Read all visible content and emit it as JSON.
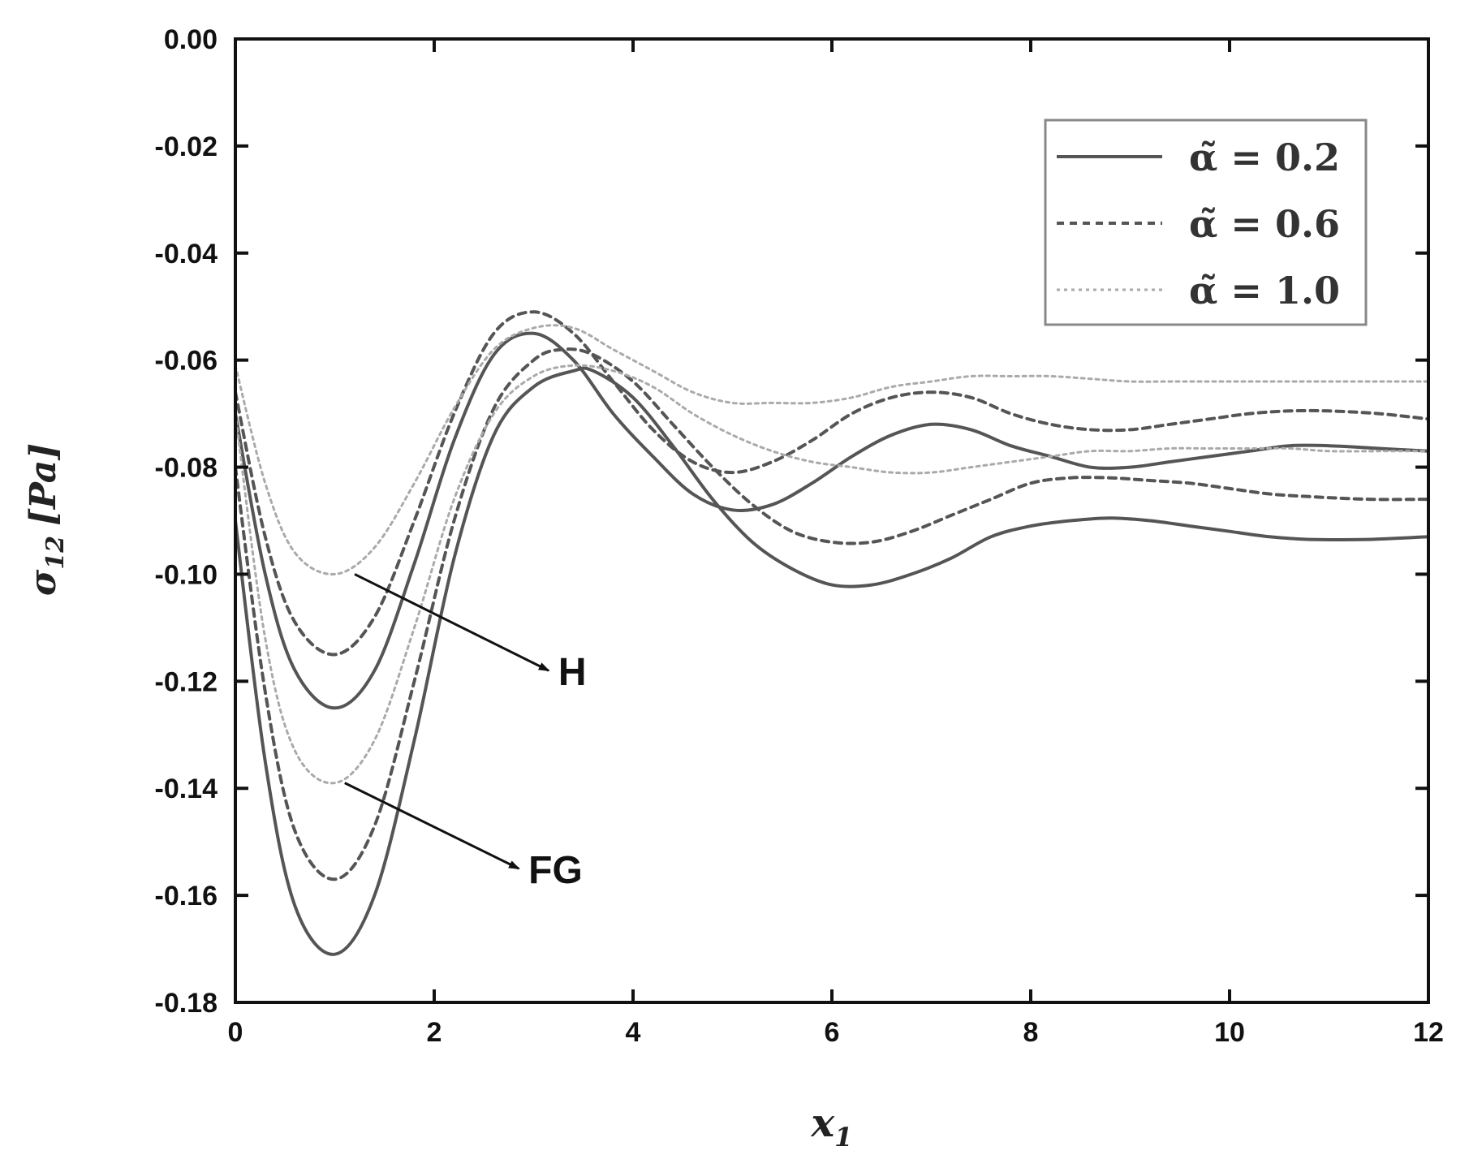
{
  "chart_data": {
    "type": "line",
    "title": "",
    "xlabel": {
      "main": "x",
      "sub": "1"
    },
    "ylabel": {
      "main": "σ",
      "sub": "12",
      "unit": "[Pa]"
    },
    "xlim": [
      0,
      12
    ],
    "ylim": [
      -0.18,
      0.0
    ],
    "xticks": [
      0,
      2,
      4,
      6,
      8,
      10,
      12
    ],
    "xtick_labels": [
      "0",
      "2",
      "4",
      "6",
      "8",
      "10",
      "12"
    ],
    "yticks": [
      0.0,
      -0.02,
      -0.04,
      -0.06,
      -0.08,
      -0.1,
      -0.12,
      -0.14,
      -0.16,
      -0.18
    ],
    "ytick_labels": [
      "0.00",
      "-0.02",
      "-0.04",
      "-0.06",
      "-0.08",
      "-0.10",
      "-0.12",
      "-0.14",
      "-0.16",
      "-0.18"
    ],
    "grid": false,
    "legend": {
      "placement": "top-right",
      "entries": [
        {
          "label": "α̃ = 0.2",
          "style": "solid",
          "color": "#555555"
        },
        {
          "label": "α̃ = 0.6",
          "style": "dashed",
          "color": "#555555"
        },
        {
          "label": "α̃ = 1.0",
          "style": "dotted",
          "color": "#aaaaaa"
        }
      ]
    },
    "annotations": [
      {
        "text": "H",
        "from": [
          1.2,
          -0.1
        ],
        "to": [
          3.15,
          -0.118
        ]
      },
      {
        "text": "FG",
        "from": [
          1.1,
          -0.139
        ],
        "to": [
          2.85,
          -0.155
        ]
      }
    ],
    "series": [
      {
        "style": "solid",
        "color": "#555555",
        "group": "H",
        "points": [
          [
            0,
            -0.07
          ],
          [
            0.3,
            -0.1
          ],
          [
            0.6,
            -0.118
          ],
          [
            1.0,
            -0.125
          ],
          [
            1.4,
            -0.118
          ],
          [
            1.8,
            -0.098
          ],
          [
            2.2,
            -0.075
          ],
          [
            2.6,
            -0.059
          ],
          [
            3.0,
            -0.055
          ],
          [
            3.4,
            -0.06
          ],
          [
            3.8,
            -0.07
          ],
          [
            4.2,
            -0.078
          ],
          [
            4.6,
            -0.085
          ],
          [
            5.0,
            -0.088
          ],
          [
            5.4,
            -0.087
          ],
          [
            5.8,
            -0.083
          ],
          [
            6.2,
            -0.078
          ],
          [
            6.6,
            -0.074
          ],
          [
            7.0,
            -0.072
          ],
          [
            7.4,
            -0.073
          ],
          [
            7.8,
            -0.076
          ],
          [
            8.2,
            -0.078
          ],
          [
            8.6,
            -0.08
          ],
          [
            9.0,
            -0.08
          ],
          [
            9.4,
            -0.079
          ],
          [
            9.8,
            -0.078
          ],
          [
            10.2,
            -0.077
          ],
          [
            10.6,
            -0.076
          ],
          [
            11.0,
            -0.076
          ],
          [
            11.5,
            -0.0765
          ],
          [
            12.0,
            -0.077
          ]
        ]
      },
      {
        "style": "dashed",
        "color": "#555555",
        "group": "H",
        "points": [
          [
            0,
            -0.066
          ],
          [
            0.3,
            -0.093
          ],
          [
            0.6,
            -0.109
          ],
          [
            1.0,
            -0.115
          ],
          [
            1.4,
            -0.108
          ],
          [
            1.8,
            -0.09
          ],
          [
            2.2,
            -0.07
          ],
          [
            2.6,
            -0.055
          ],
          [
            3.0,
            -0.051
          ],
          [
            3.4,
            -0.055
          ],
          [
            3.8,
            -0.064
          ],
          [
            4.2,
            -0.073
          ],
          [
            4.6,
            -0.079
          ],
          [
            5.0,
            -0.081
          ],
          [
            5.4,
            -0.079
          ],
          [
            5.8,
            -0.075
          ],
          [
            6.2,
            -0.07
          ],
          [
            6.6,
            -0.067
          ],
          [
            7.0,
            -0.066
          ],
          [
            7.4,
            -0.067
          ],
          [
            7.8,
            -0.07
          ],
          [
            8.2,
            -0.072
          ],
          [
            8.6,
            -0.073
          ],
          [
            9.0,
            -0.073
          ],
          [
            9.4,
            -0.072
          ],
          [
            9.8,
            -0.071
          ],
          [
            10.2,
            -0.07
          ],
          [
            10.6,
            -0.0695
          ],
          [
            11.0,
            -0.0695
          ],
          [
            11.5,
            -0.07
          ],
          [
            12.0,
            -0.071
          ]
        ]
      },
      {
        "style": "dotted",
        "color": "#aaaaaa",
        "group": "H",
        "points": [
          [
            0,
            -0.061
          ],
          [
            0.3,
            -0.083
          ],
          [
            0.6,
            -0.096
          ],
          [
            1.0,
            -0.1
          ],
          [
            1.4,
            -0.095
          ],
          [
            1.8,
            -0.083
          ],
          [
            2.2,
            -0.069
          ],
          [
            2.6,
            -0.058
          ],
          [
            3.0,
            -0.054
          ],
          [
            3.4,
            -0.054
          ],
          [
            3.8,
            -0.058
          ],
          [
            4.2,
            -0.062
          ],
          [
            4.6,
            -0.066
          ],
          [
            5.0,
            -0.068
          ],
          [
            5.4,
            -0.068
          ],
          [
            5.8,
            -0.068
          ],
          [
            6.2,
            -0.067
          ],
          [
            6.6,
            -0.065
          ],
          [
            7.0,
            -0.064
          ],
          [
            7.4,
            -0.063
          ],
          [
            7.8,
            -0.063
          ],
          [
            8.2,
            -0.063
          ],
          [
            8.6,
            -0.0635
          ],
          [
            9.0,
            -0.064
          ],
          [
            9.4,
            -0.064
          ],
          [
            9.8,
            -0.064
          ],
          [
            10.2,
            -0.064
          ],
          [
            10.6,
            -0.064
          ],
          [
            11.0,
            -0.064
          ],
          [
            11.5,
            -0.064
          ],
          [
            12.0,
            -0.064
          ]
        ]
      },
      {
        "style": "solid",
        "color": "#555555",
        "group": "FG",
        "points": [
          [
            0,
            -0.09
          ],
          [
            0.3,
            -0.135
          ],
          [
            0.6,
            -0.162
          ],
          [
            1.0,
            -0.171
          ],
          [
            1.4,
            -0.16
          ],
          [
            1.8,
            -0.131
          ],
          [
            2.2,
            -0.097
          ],
          [
            2.6,
            -0.074
          ],
          [
            3.0,
            -0.065
          ],
          [
            3.4,
            -0.062
          ],
          [
            3.6,
            -0.062
          ],
          [
            4.0,
            -0.067
          ],
          [
            4.4,
            -0.076
          ],
          [
            4.8,
            -0.086
          ],
          [
            5.2,
            -0.094
          ],
          [
            5.6,
            -0.099
          ],
          [
            6.0,
            -0.102
          ],
          [
            6.4,
            -0.102
          ],
          [
            6.8,
            -0.1
          ],
          [
            7.2,
            -0.097
          ],
          [
            7.6,
            -0.093
          ],
          [
            8.0,
            -0.091
          ],
          [
            8.4,
            -0.09
          ],
          [
            8.8,
            -0.0895
          ],
          [
            9.2,
            -0.09
          ],
          [
            9.6,
            -0.091
          ],
          [
            10.0,
            -0.092
          ],
          [
            10.4,
            -0.093
          ],
          [
            10.8,
            -0.0935
          ],
          [
            11.4,
            -0.0935
          ],
          [
            12.0,
            -0.093
          ]
        ]
      },
      {
        "style": "dashed",
        "color": "#555555",
        "group": "FG",
        "points": [
          [
            0,
            -0.08
          ],
          [
            0.3,
            -0.122
          ],
          [
            0.6,
            -0.148
          ],
          [
            1.0,
            -0.157
          ],
          [
            1.4,
            -0.147
          ],
          [
            1.8,
            -0.12
          ],
          [
            2.2,
            -0.09
          ],
          [
            2.6,
            -0.069
          ],
          [
            3.0,
            -0.06
          ],
          [
            3.3,
            -0.058
          ],
          [
            3.6,
            -0.059
          ],
          [
            4.0,
            -0.064
          ],
          [
            4.4,
            -0.072
          ],
          [
            4.8,
            -0.08
          ],
          [
            5.2,
            -0.087
          ],
          [
            5.6,
            -0.092
          ],
          [
            6.0,
            -0.094
          ],
          [
            6.4,
            -0.094
          ],
          [
            6.8,
            -0.092
          ],
          [
            7.2,
            -0.089
          ],
          [
            7.6,
            -0.086
          ],
          [
            8.0,
            -0.083
          ],
          [
            8.4,
            -0.082
          ],
          [
            8.8,
            -0.082
          ],
          [
            9.2,
            -0.0825
          ],
          [
            9.6,
            -0.083
          ],
          [
            10.0,
            -0.084
          ],
          [
            10.4,
            -0.085
          ],
          [
            10.8,
            -0.0855
          ],
          [
            11.4,
            -0.086
          ],
          [
            12.0,
            -0.086
          ]
        ]
      },
      {
        "style": "dotted",
        "color": "#aaaaaa",
        "group": "FG",
        "points": [
          [
            0,
            -0.07
          ],
          [
            0.3,
            -0.112
          ],
          [
            0.6,
            -0.133
          ],
          [
            1.0,
            -0.139
          ],
          [
            1.4,
            -0.131
          ],
          [
            1.8,
            -0.11
          ],
          [
            2.2,
            -0.086
          ],
          [
            2.6,
            -0.07
          ],
          [
            3.0,
            -0.063
          ],
          [
            3.4,
            -0.061
          ],
          [
            3.8,
            -0.062
          ],
          [
            4.2,
            -0.065
          ],
          [
            4.6,
            -0.07
          ],
          [
            5.0,
            -0.074
          ],
          [
            5.4,
            -0.077
          ],
          [
            5.8,
            -0.079
          ],
          [
            6.2,
            -0.08
          ],
          [
            6.6,
            -0.081
          ],
          [
            7.0,
            -0.081
          ],
          [
            7.4,
            -0.08
          ],
          [
            7.8,
            -0.079
          ],
          [
            8.2,
            -0.078
          ],
          [
            8.6,
            -0.077
          ],
          [
            9.0,
            -0.077
          ],
          [
            9.4,
            -0.0765
          ],
          [
            9.8,
            -0.0765
          ],
          [
            10.2,
            -0.0765
          ],
          [
            10.6,
            -0.0765
          ],
          [
            11.0,
            -0.077
          ],
          [
            11.5,
            -0.077
          ],
          [
            12.0,
            -0.077
          ]
        ]
      }
    ]
  }
}
